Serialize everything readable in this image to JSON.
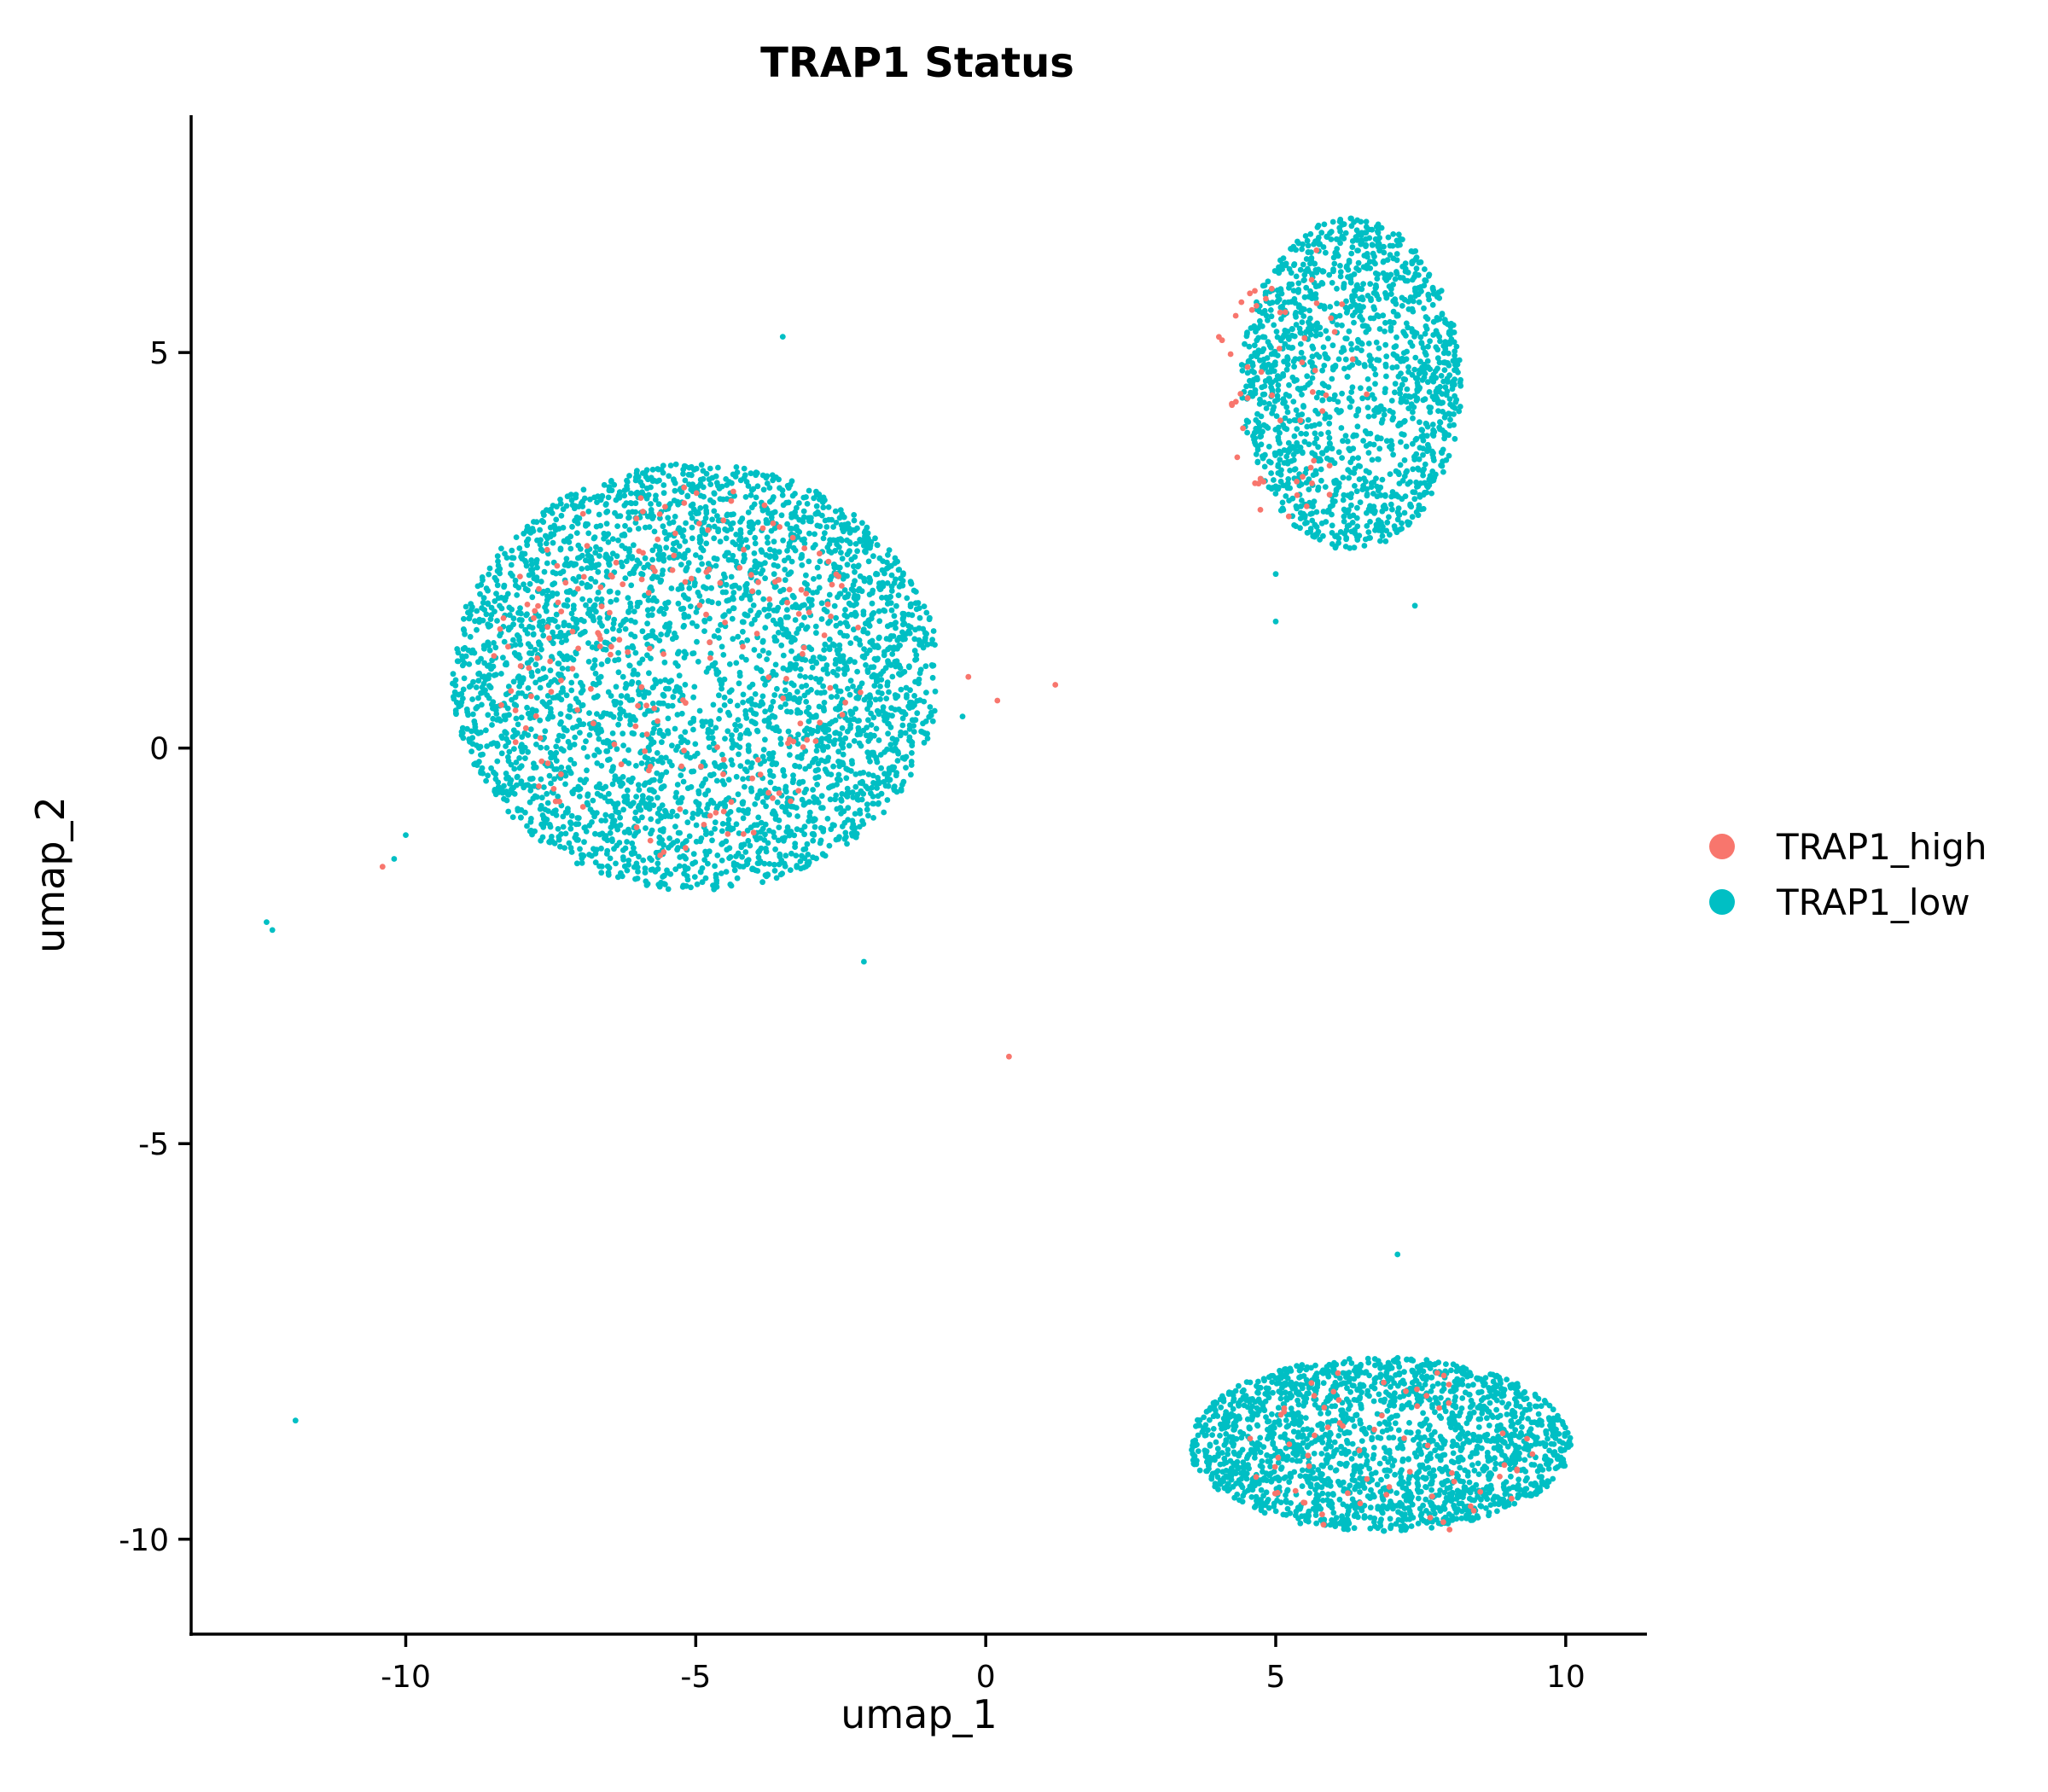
{
  "chart_data": {
    "type": "scatter",
    "title": "TRAP1 Status",
    "xlabel": "umap_1",
    "ylabel": "umap_2",
    "xlim": [
      -13.7,
      11.4
    ],
    "ylim": [
      -11.2,
      8.0
    ],
    "xticks": [
      -10,
      -5,
      0,
      5,
      10
    ],
    "yticks": [
      -10,
      -5,
      0,
      5
    ],
    "xtick_labels": [
      "-10",
      "-5",
      "0",
      "5",
      "10"
    ],
    "ytick_labels": [
      "-10",
      "-5",
      "0",
      "5"
    ],
    "grid": false,
    "legend_position": "right",
    "series": [
      {
        "name": "TRAP1_high",
        "color": "#F8766D",
        "clusters": [
          {
            "cx": -5.3,
            "cy": 1.0,
            "rx": 3.2,
            "ry": 2.4,
            "n": 190
          },
          {
            "cx": 5.3,
            "cy": 4.6,
            "rx": 1.4,
            "ry": 1.8,
            "n": 55
          },
          {
            "cx": 7.0,
            "cy": -8.9,
            "rx": 2.5,
            "ry": 1.1,
            "n": 65
          }
        ],
        "points": [
          {
            "x": -10.4,
            "y": -1.5
          },
          {
            "x": 0.4,
            "y": -3.9
          },
          {
            "x": 1.2,
            "y": 0.8
          },
          {
            "x": -0.3,
            "y": 0.9
          },
          {
            "x": 0.2,
            "y": 0.6
          }
        ]
      },
      {
        "name": "TRAP1_low",
        "color": "#00BFC4",
        "clusters": [
          {
            "cx": -5.0,
            "cy": 0.9,
            "rx": 4.2,
            "ry": 2.7,
            "n": 3600
          },
          {
            "cx": 6.3,
            "cy": 4.6,
            "rx": 1.9,
            "ry": 2.1,
            "n": 1500
          },
          {
            "cx": 6.8,
            "cy": -8.8,
            "rx": 3.3,
            "ry": 1.1,
            "n": 2000
          }
        ],
        "points": [
          {
            "x": -12.4,
            "y": -2.2
          },
          {
            "x": -12.3,
            "y": -2.3
          },
          {
            "x": -11.9,
            "y": -8.5
          },
          {
            "x": -10.0,
            "y": -1.1
          },
          {
            "x": -10.2,
            "y": -1.4
          },
          {
            "x": -3.5,
            "y": 5.2
          },
          {
            "x": -2.1,
            "y": -2.7
          },
          {
            "x": -0.4,
            "y": 0.4
          },
          {
            "x": 5.0,
            "y": 1.6
          },
          {
            "x": 5.0,
            "y": 2.2
          },
          {
            "x": 7.4,
            "y": 1.8
          },
          {
            "x": 7.1,
            "y": -6.4
          }
        ]
      }
    ]
  }
}
